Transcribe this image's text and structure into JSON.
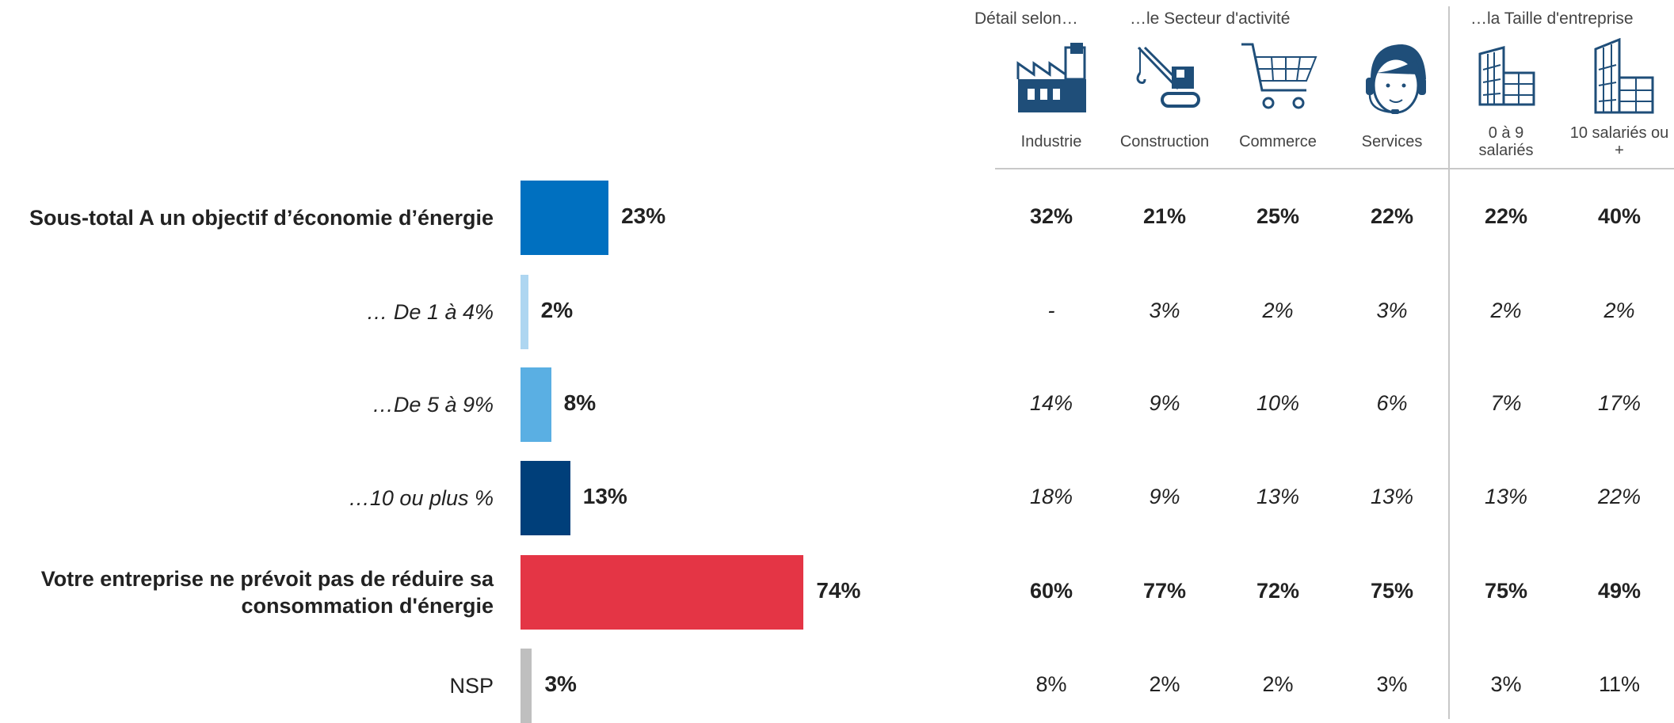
{
  "header": {
    "detail_label": "Détail selon…",
    "sector_label": "…le Secteur d'activité",
    "size_label": "…la Taille d'entreprise"
  },
  "columns": [
    {
      "key": "industrie",
      "label": "Industrie",
      "icon": "factory-icon"
    },
    {
      "key": "construction",
      "label": "Construction",
      "icon": "crane-icon"
    },
    {
      "key": "commerce",
      "label": "Commerce",
      "icon": "shopping-cart-icon"
    },
    {
      "key": "services",
      "label": "Services",
      "icon": "headset-operator-icon"
    },
    {
      "key": "small",
      "label_line1": "0 à 9",
      "label_line2": "salariés",
      "icon": "small-building-icon"
    },
    {
      "key": "large",
      "label_line1": "10 salariés ou",
      "label_line2": "+",
      "icon": "large-building-icon"
    }
  ],
  "colors": {
    "sous_total": "#0070c0",
    "de1a4": "#aed6f1",
    "de5a9": "#5aafe3",
    "dix_plus": "#003f7a",
    "ne_prevoit_pas": "#e43545",
    "nsp": "#bfbfbf",
    "icon_blue": "#1f4e79"
  },
  "chart_data": {
    "type": "bar",
    "orientation": "horizontal",
    "categories": [
      "Sous-total A un objectif d’économie d’énergie",
      "… De 1 à 4%",
      "…De 5 à 9%",
      "…10 ou plus %",
      "Votre entreprise ne prévoit pas de réduire sa consommation d'énergie",
      "NSP"
    ],
    "category_lines": [
      [
        "Sous-total A un objectif d’économie d’énergie"
      ],
      [
        "… De 1 à 4%"
      ],
      [
        "…De 5 à 9%"
      ],
      [
        "…10 ou plus %"
      ],
      [
        "Votre entreprise ne prévoit pas de réduire sa",
        "consommation d'énergie"
      ],
      [
        "NSP"
      ]
    ],
    "values": [
      23,
      2,
      8,
      13,
      74,
      3
    ],
    "value_labels": [
      "23%",
      "2%",
      "8%",
      "13%",
      "74%",
      "3%"
    ],
    "styles": [
      "bold",
      "italic",
      "italic",
      "italic",
      "bold",
      "normal"
    ],
    "xlim": [
      0,
      100
    ]
  },
  "table": {
    "rows": [
      [
        "32%",
        "21%",
        "25%",
        "22%",
        "22%",
        "40%"
      ],
      [
        "-",
        "3%",
        "2%",
        "3%",
        "2%",
        "2%"
      ],
      [
        "14%",
        "9%",
        "10%",
        "6%",
        "7%",
        "17%"
      ],
      [
        "18%",
        "9%",
        "13%",
        "13%",
        "13%",
        "22%"
      ],
      [
        "60%",
        "77%",
        "72%",
        "75%",
        "75%",
        "49%"
      ],
      [
        "8%",
        "2%",
        "2%",
        "3%",
        "3%",
        "11%"
      ]
    ]
  }
}
